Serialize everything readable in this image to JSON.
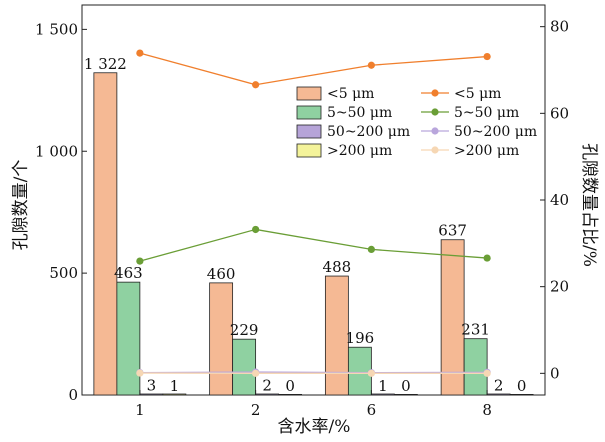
{
  "chart_data": {
    "type": "bar",
    "xlabel": "含水率/%",
    "ylabel_left": "孔隙数量/个",
    "ylabel_right": "孔隙数量占比/%",
    "categories": [
      "1",
      "2",
      "6",
      "8"
    ],
    "left_axis": {
      "min": 0,
      "max": 1600,
      "ticks": [
        0,
        500,
        1000,
        1500
      ],
      "tick_labels": [
        "0",
        "500",
        "1 000",
        "1 500"
      ]
    },
    "right_axis": {
      "min": -5,
      "max": 85,
      "ticks": [
        0,
        20,
        40,
        60,
        80
      ],
      "tick_labels": [
        "0",
        "20",
        "40",
        "60",
        "80"
      ]
    },
    "bar_series": [
      {
        "name": "<5 μm",
        "color": "#f5b994",
        "values": [
          1322,
          460,
          488,
          637
        ],
        "labels": [
          "1 322",
          "460",
          "488",
          "637"
        ]
      },
      {
        "name": "5~50 μm",
        "color": "#8fd1a1",
        "values": [
          463,
          229,
          196,
          231
        ],
        "labels": [
          "463",
          "229",
          "196",
          "231"
        ]
      },
      {
        "name": "50~200 μm",
        "color": "#b6a4d8",
        "values": [
          3,
          2,
          1,
          2
        ],
        "labels": [
          "3",
          "2",
          "1",
          "2"
        ]
      },
      {
        "name": ">200 μm",
        "color": "#f4f39a",
        "values": [
          1,
          0,
          0,
          0
        ],
        "labels": [
          "1",
          "0",
          "0",
          "0"
        ]
      }
    ],
    "line_series": [
      {
        "name": "<5 μm",
        "color": "#f07f2d",
        "values": [
          73.9,
          66.6,
          71.1,
          73.1
        ]
      },
      {
        "name": "5~50 μm",
        "color": "#6a9e36",
        "values": [
          25.9,
          33.2,
          28.6,
          26.6
        ]
      },
      {
        "name": "50~200 μm",
        "color": "#b9a6dc",
        "values": [
          0.17,
          0.29,
          0.15,
          0.23
        ]
      },
      {
        "name": ">200 μm",
        "color": "#f6d7b4",
        "values": [
          0.06,
          0,
          0,
          0
        ]
      }
    ],
    "legend_position": "upper-right"
  }
}
